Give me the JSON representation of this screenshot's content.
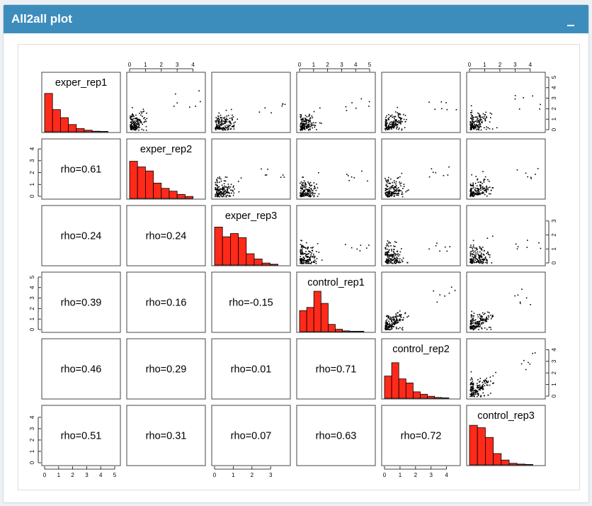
{
  "header": {
    "title": "All2all plot"
  },
  "chart_data": {
    "type": "scatter-matrix",
    "variables": [
      "exper_rep1",
      "exper_rep2",
      "exper_rep3",
      "control_rep1",
      "control_rep2",
      "control_rep3"
    ],
    "axis_ticks": [
      [
        "0",
        "1",
        "2",
        "3",
        "4",
        "5"
      ],
      [
        "0",
        "1",
        "2",
        "3",
        "4"
      ],
      [
        "0",
        "1",
        "2",
        "3"
      ],
      [
        "0",
        "1",
        "2",
        "3",
        "4",
        "5"
      ],
      [
        "0",
        "1",
        "2",
        "3",
        "4"
      ],
      [
        "0",
        "1",
        "2",
        "3",
        "4"
      ]
    ],
    "axis_ranges": [
      [
        0,
        5.2
      ],
      [
        0,
        4.6
      ],
      [
        0,
        3.9
      ],
      [
        0,
        5.2
      ],
      [
        0,
        4.7
      ],
      [
        0,
        4.8
      ]
    ],
    "histograms": [
      [
        0.95,
        0.55,
        0.35,
        0.18,
        0.08,
        0.04,
        0.015,
        0.01
      ],
      [
        0.92,
        0.78,
        0.68,
        0.38,
        0.25,
        0.18,
        0.1,
        0.05
      ],
      [
        0.94,
        0.7,
        0.78,
        0.68,
        0.28,
        0.15,
        0.05,
        0.02
      ],
      [
        0.52,
        0.6,
        1.0,
        0.7,
        0.18,
        0.06,
        0.02,
        0.01,
        0.005
      ],
      [
        0.55,
        0.88,
        0.48,
        0.38,
        0.16,
        0.1,
        0.05,
        0.02,
        0.01
      ],
      [
        0.98,
        0.92,
        0.68,
        0.28,
        0.12,
        0.04,
        0.02,
        0.01
      ]
    ],
    "correlations": [
      {
        "row": 2,
        "col": 1,
        "label": "rho=0.61"
      },
      {
        "row": 3,
        "col": 1,
        "label": "rho=0.24"
      },
      {
        "row": 3,
        "col": 2,
        "label": "rho=0.24"
      },
      {
        "row": 4,
        "col": 1,
        "label": "rho=0.39"
      },
      {
        "row": 4,
        "col": 2,
        "label": "rho=0.16"
      },
      {
        "row": 4,
        "col": 3,
        "label": "rho=-0.15"
      },
      {
        "row": 5,
        "col": 1,
        "label": "rho=0.46"
      },
      {
        "row": 5,
        "col": 2,
        "label": "rho=0.29"
      },
      {
        "row": 5,
        "col": 3,
        "label": "rho=0.01"
      },
      {
        "row": 5,
        "col": 4,
        "label": "rho=0.71"
      },
      {
        "row": 6,
        "col": 1,
        "label": "rho=0.51"
      },
      {
        "row": 6,
        "col": 2,
        "label": "rho=0.31"
      },
      {
        "row": 6,
        "col": 3,
        "label": "rho=0.07"
      },
      {
        "row": 6,
        "col": 4,
        "label": "rho=0.63"
      },
      {
        "row": 6,
        "col": 5,
        "label": "rho=0.72"
      }
    ],
    "colors": {
      "histogram_fill": "#ff2a1a",
      "histogram_stroke": "#000000",
      "points": "#000000"
    }
  }
}
